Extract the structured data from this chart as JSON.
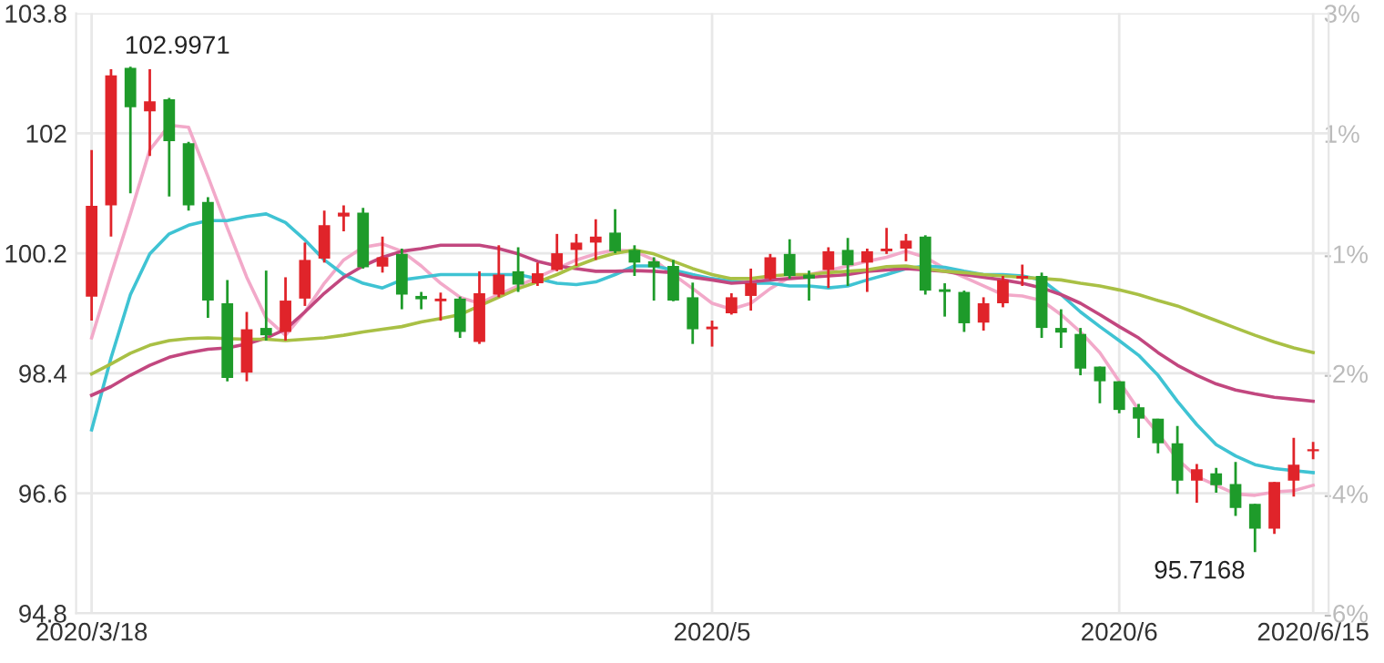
{
  "chart_data": {
    "type": "candlestick",
    "categories": [
      "2020/3/18",
      null,
      null,
      null,
      null,
      null,
      null,
      null,
      null,
      null,
      null,
      null,
      null,
      null,
      null,
      null,
      null,
      null,
      null,
      null,
      null,
      null,
      null,
      null,
      null,
      null,
      null,
      null,
      null,
      null,
      null,
      null,
      "2020/5",
      null,
      null,
      null,
      null,
      null,
      null,
      null,
      null,
      null,
      null,
      null,
      null,
      null,
      null,
      null,
      null,
      null,
      null,
      null,
      null,
      "2020/6",
      null,
      null,
      null,
      null,
      null,
      null,
      null,
      null,
      null,
      "2020/6/15"
    ],
    "ohlc": [
      [
        99.55,
        101.75,
        99.19,
        100.91
      ],
      [
        100.92,
        102.96,
        100.45,
        102.87
      ],
      [
        102.98,
        102.9971,
        101.1,
        102.39
      ],
      [
        102.33,
        102.96,
        101.66,
        102.48
      ],
      [
        102.51,
        102.53,
        101.05,
        101.88
      ],
      [
        101.85,
        101.87,
        100.84,
        100.92
      ],
      [
        100.97,
        101.04,
        99.23,
        99.49
      ],
      [
        99.45,
        99.8,
        98.28,
        98.33
      ],
      [
        98.41,
        99.32,
        98.28,
        99.06
      ],
      [
        99.08,
        99.94,
        98.89,
        98.97
      ],
      [
        99.02,
        99.84,
        98.89,
        99.49
      ],
      [
        99.52,
        100.36,
        99.41,
        100.1
      ],
      [
        100.12,
        100.84,
        100.06,
        100.62
      ],
      [
        100.75,
        100.92,
        100.53,
        100.81
      ],
      [
        100.81,
        100.88,
        99.97,
        99.99
      ],
      [
        100.0,
        100.45,
        99.91,
        100.14
      ],
      [
        100.19,
        100.27,
        99.36,
        99.58
      ],
      [
        99.56,
        99.62,
        99.36,
        99.51
      ],
      [
        99.48,
        99.61,
        99.19,
        99.52
      ],
      [
        99.52,
        99.55,
        98.93,
        99.02
      ],
      [
        98.87,
        99.93,
        98.84,
        99.6
      ],
      [
        99.58,
        100.32,
        99.54,
        99.88
      ],
      [
        99.93,
        100.29,
        99.62,
        99.73
      ],
      [
        99.75,
        100.06,
        99.71,
        99.9
      ],
      [
        99.95,
        100.49,
        99.93,
        100.2
      ],
      [
        100.25,
        100.49,
        100.01,
        100.36
      ],
      [
        100.36,
        100.71,
        100.1,
        100.45
      ],
      [
        100.51,
        100.86,
        100.2,
        100.23
      ],
      [
        100.25,
        100.32,
        99.86,
        100.06
      ],
      [
        100.08,
        100.14,
        99.49,
        99.99
      ],
      [
        100.01,
        100.1,
        99.48,
        99.49
      ],
      [
        99.54,
        99.76,
        98.84,
        99.06
      ],
      [
        99.06,
        99.19,
        98.8,
        99.1
      ],
      [
        99.3,
        99.6,
        99.28,
        99.54
      ],
      [
        99.56,
        99.97,
        99.34,
        99.75
      ],
      [
        99.82,
        100.19,
        99.8,
        100.14
      ],
      [
        100.19,
        100.41,
        99.82,
        99.86
      ],
      [
        99.88,
        99.94,
        99.49,
        99.82
      ],
      [
        99.95,
        100.29,
        99.68,
        100.23
      ],
      [
        100.25,
        100.43,
        99.71,
        100.02
      ],
      [
        100.06,
        100.27,
        99.62,
        100.23
      ],
      [
        100.23,
        100.58,
        100.19,
        100.27
      ],
      [
        100.27,
        100.49,
        100.08,
        100.39
      ],
      [
        100.45,
        100.47,
        99.58,
        99.64
      ],
      [
        99.66,
        99.75,
        99.25,
        99.62
      ],
      [
        99.62,
        99.64,
        99.02,
        99.15
      ],
      [
        99.16,
        99.54,
        99.04,
        99.45
      ],
      [
        99.45,
        99.86,
        99.39,
        99.8
      ],
      [
        99.82,
        100.03,
        99.71,
        99.86
      ],
      [
        99.86,
        99.91,
        98.93,
        99.08
      ],
      [
        99.08,
        99.36,
        98.78,
        99.01
      ],
      [
        98.99,
        99.08,
        98.37,
        98.47
      ],
      [
        98.5,
        98.5,
        97.95,
        98.28
      ],
      [
        98.28,
        98.28,
        97.8,
        97.85
      ],
      [
        97.89,
        97.94,
        97.43,
        97.72
      ],
      [
        97.72,
        97.72,
        97.2,
        97.35
      ],
      [
        97.35,
        97.61,
        96.59,
        96.79
      ],
      [
        96.79,
        97.04,
        96.46,
        96.96
      ],
      [
        96.9,
        96.98,
        96.61,
        96.72
      ],
      [
        96.74,
        97.07,
        96.26,
        96.38
      ],
      [
        96.44,
        96.44,
        95.7168,
        96.07
      ],
      [
        96.07,
        96.77,
        95.99,
        96.77
      ],
      [
        96.79,
        97.43,
        96.55,
        97.03
      ],
      [
        97.23,
        97.37,
        97.11,
        97.26
      ]
    ],
    "colors": [
      "#e0242a",
      "#e0242a",
      "#1e9b2a",
      "#e0242a",
      "#1e9b2a",
      "#1e9b2a",
      "#1e9b2a",
      "#1e9b2a",
      "#e0242a",
      "#1e9b2a",
      "#e0242a",
      "#e0242a",
      "#e0242a",
      "#e0242a",
      "#1e9b2a",
      "#e0242a",
      "#1e9b2a",
      "#1e9b2a",
      "#e0242a",
      "#1e9b2a",
      "#e0242a",
      "#e0242a",
      "#1e9b2a",
      "#e0242a",
      "#e0242a",
      "#e0242a",
      "#e0242a",
      "#1e9b2a",
      "#1e9b2a",
      "#1e9b2a",
      "#1e9b2a",
      "#1e9b2a",
      "#e0242a",
      "#e0242a",
      "#e0242a",
      "#e0242a",
      "#1e9b2a",
      "#1e9b2a",
      "#e0242a",
      "#1e9b2a",
      "#e0242a",
      "#e0242a",
      "#e0242a",
      "#1e9b2a",
      "#1e9b2a",
      "#1e9b2a",
      "#e0242a",
      "#e0242a",
      "#e0242a",
      "#1e9b2a",
      "#1e9b2a",
      "#1e9b2a",
      "#1e9b2a",
      "#1e9b2a",
      "#1e9b2a",
      "#1e9b2a",
      "#1e9b2a",
      "#e0242a",
      "#1e9b2a",
      "#1e9b2a",
      "#1e9b2a",
      "#e0242a",
      "#e0242a",
      "#e0242a"
    ],
    "series": [
      {
        "type": "line",
        "color": "#f2a9c9",
        "values": [
          98.93,
          99.88,
          100.79,
          101.75,
          102.12,
          102.09,
          101.35,
          100.58,
          99.84,
          99.23,
          98.97,
          99.32,
          99.75,
          100.1,
          100.29,
          100.34,
          100.23,
          100.01,
          99.75,
          99.54,
          99.45,
          99.58,
          99.71,
          99.84,
          99.97,
          100.1,
          100.19,
          100.25,
          100.23,
          100.1,
          99.88,
          99.67,
          99.45,
          99.36,
          99.45,
          99.67,
          99.84,
          99.88,
          99.94,
          100.01,
          100.08,
          100.14,
          100.23,
          100.14,
          99.97,
          99.84,
          99.71,
          99.58,
          99.56,
          99.49,
          99.28,
          99.02,
          98.71,
          98.28,
          97.85,
          97.5,
          97.11,
          96.85,
          96.72,
          96.59,
          96.57,
          96.62,
          96.64,
          96.72
        ]
      },
      {
        "type": "line",
        "color": "#3fc3d3",
        "values": [
          97.55,
          98.63,
          99.58,
          100.19,
          100.49,
          100.62,
          100.69,
          100.69,
          100.75,
          100.79,
          100.66,
          100.4,
          100.1,
          99.88,
          99.75,
          99.68,
          99.8,
          99.84,
          99.88,
          99.88,
          99.88,
          99.88,
          99.88,
          99.82,
          99.75,
          99.73,
          99.77,
          99.88,
          100.01,
          100.01,
          99.95,
          99.88,
          99.82,
          99.78,
          99.75,
          99.75,
          99.71,
          99.71,
          99.68,
          99.71,
          99.8,
          99.88,
          99.97,
          100.01,
          99.99,
          99.93,
          99.88,
          99.88,
          99.86,
          99.8,
          99.58,
          99.32,
          99.1,
          98.89,
          98.67,
          98.37,
          97.98,
          97.63,
          97.33,
          97.16,
          97.03,
          96.97,
          96.94,
          96.91
        ]
      },
      {
        "type": "line",
        "color": "#c2477f",
        "values": [
          98.07,
          98.2,
          98.37,
          98.52,
          98.64,
          98.71,
          98.76,
          98.78,
          98.84,
          98.93,
          99.06,
          99.32,
          99.6,
          99.84,
          100.01,
          100.14,
          100.23,
          100.27,
          100.32,
          100.32,
          100.32,
          100.27,
          100.19,
          100.08,
          100.01,
          99.97,
          99.93,
          99.93,
          99.94,
          99.93,
          99.91,
          99.84,
          99.8,
          99.75,
          99.77,
          99.8,
          99.82,
          99.84,
          99.86,
          99.88,
          99.93,
          99.95,
          99.97,
          99.95,
          99.93,
          99.88,
          99.84,
          99.8,
          99.75,
          99.68,
          99.58,
          99.45,
          99.28,
          99.1,
          98.93,
          98.71,
          98.52,
          98.37,
          98.24,
          98.15,
          98.09,
          98.04,
          98.01,
          97.98
        ]
      },
      {
        "type": "line",
        "color": "#a9c045",
        "values": [
          98.39,
          98.54,
          98.7,
          98.82,
          98.89,
          98.92,
          98.93,
          98.92,
          98.91,
          98.91,
          98.89,
          98.91,
          98.93,
          98.97,
          99.02,
          99.06,
          99.1,
          99.17,
          99.22,
          99.28,
          99.41,
          99.54,
          99.67,
          99.77,
          99.88,
          100.01,
          100.12,
          100.2,
          100.25,
          100.19,
          100.08,
          99.97,
          99.88,
          99.82,
          99.82,
          99.86,
          99.88,
          99.88,
          99.91,
          99.93,
          99.95,
          100.0,
          100.01,
          99.97,
          99.93,
          99.91,
          99.88,
          99.86,
          99.84,
          99.82,
          99.8,
          99.75,
          99.71,
          99.65,
          99.58,
          99.49,
          99.41,
          99.3,
          99.19,
          99.08,
          98.97,
          98.87,
          98.78,
          98.71
        ]
      }
    ],
    "ylim": [
      94.8,
      103.8
    ],
    "yticks": [
      103.8,
      102,
      100.2,
      98.4,
      96.6,
      94.8
    ],
    "y2lim": [
      -5.95,
      2.98
    ],
    "y2ticks": [
      {
        "value": 2.98,
        "label": "3%"
      },
      {
        "value": 1.19,
        "label": "1%"
      },
      {
        "value": -0.6,
        "label": "-1%"
      },
      {
        "value": -2.38,
        "label": "-2%"
      },
      {
        "value": -4.17,
        "label": "-4%"
      },
      {
        "value": -5.95,
        "label": "-6%"
      }
    ],
    "annotations": [
      "102.9971",
      "95.7168"
    ],
    "grid": true
  }
}
